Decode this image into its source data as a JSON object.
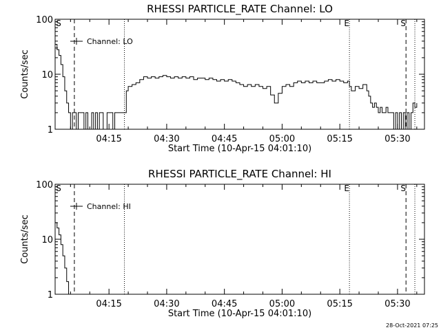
{
  "timestamp": "28-Oct-2021 07:25",
  "chart_data": [
    {
      "type": "line",
      "title": "RHESSI PARTICLE_RATE Channel: LO",
      "xlabel": "Start Time (10-Apr-15 04:01:10)",
      "ylabel": "Counts/sec",
      "legend": "Channel: LO",
      "legend_position": "top-left",
      "y_scale": "log",
      "ylim": [
        1,
        100
      ],
      "y_ticks": [
        "1",
        "10",
        "100"
      ],
      "xlim_min": [
        1,
        97
      ],
      "x_ticks": [
        {
          "min": 15,
          "label": "04:15"
        },
        {
          "min": 30,
          "label": "04:30"
        },
        {
          "min": 45,
          "label": "04:45"
        },
        {
          "min": 60,
          "label": "05:00"
        },
        {
          "min": 75,
          "label": "05:15"
        },
        {
          "min": 90,
          "label": "05:30"
        }
      ],
      "markers": [
        {
          "min": 1.2,
          "label": "S",
          "style": "none"
        },
        {
          "min": 6,
          "label": "",
          "style": "dashed"
        },
        {
          "min": 19,
          "label": "",
          "style": "dotted"
        },
        {
          "min": 77.5,
          "label": "E",
          "style": "dotted"
        },
        {
          "min": 92.2,
          "label": "S",
          "style": "dashed"
        },
        {
          "min": 94.5,
          "label": "",
          "style": "dotted"
        }
      ],
      "series": [
        {
          "x": [
            1,
            1.5,
            2,
            2.5,
            3,
            3.5,
            4,
            4.5,
            5,
            5.5,
            6,
            6.5,
            7,
            7.5,
            8,
            8.5,
            9,
            9.5,
            10,
            10.5,
            11,
            11.5,
            12,
            12.5,
            13,
            13.5,
            14,
            14.5,
            15,
            15.5,
            16,
            16.5,
            17,
            17.5,
            18,
            18.5,
            19,
            19.5,
            20,
            21,
            22,
            23,
            24,
            25,
            26,
            27,
            28,
            29,
            30,
            31,
            32,
            33,
            34,
            35,
            36,
            37,
            38,
            39,
            40,
            41,
            42,
            43,
            44,
            45,
            46,
            47,
            48,
            49,
            50,
            51,
            52,
            53,
            54,
            55,
            56,
            57,
            58,
            59,
            60,
            61,
            62,
            63,
            64,
            65,
            66,
            67,
            68,
            69,
            70,
            71,
            72,
            73,
            74,
            75,
            76,
            77,
            77.5,
            78,
            79,
            80,
            81,
            82,
            82.5,
            83,
            83.5,
            84,
            84.5,
            85,
            85.5,
            86,
            86.5,
            87,
            87.5,
            88,
            88.5,
            89,
            89.5,
            90,
            90.5,
            91,
            91.5,
            92,
            92.5,
            93,
            93.5,
            94,
            94.5,
            95
          ],
          "y": [
            35,
            28,
            22,
            15,
            9,
            5,
            3,
            2,
            1,
            2,
            2,
            1,
            2,
            2,
            2,
            1,
            2,
            1,
            1,
            2,
            1,
            2,
            1,
            2,
            2,
            1,
            1,
            2,
            2,
            2,
            1,
            2,
            2,
            2,
            2,
            2,
            2,
            5,
            6,
            6.5,
            7,
            8,
            9,
            8.5,
            9,
            8.5,
            9,
            9.5,
            9,
            8.5,
            9,
            8.5,
            9,
            8.5,
            9,
            8,
            8.5,
            8.5,
            8,
            8.5,
            8,
            7.5,
            8,
            7.5,
            8,
            7.5,
            7,
            6.5,
            6,
            6.5,
            6,
            6.5,
            6,
            5.5,
            6,
            4.2,
            3,
            4.5,
            6,
            6.5,
            6,
            7,
            7.5,
            7,
            7.5,
            7,
            7.5,
            7,
            7,
            7.5,
            8,
            7.5,
            8,
            7.5,
            7,
            7.5,
            6,
            5,
            6,
            5.5,
            6.5,
            5,
            4,
            3,
            2.5,
            3,
            2.5,
            2,
            2.5,
            2,
            2,
            2.5,
            2,
            2,
            2,
            1,
            2,
            1,
            2,
            1,
            2,
            1,
            2,
            1,
            2,
            3,
            2.5,
            3
          ]
        }
      ]
    },
    {
      "type": "line",
      "title": "RHESSI PARTICLE_RATE Channel: HI",
      "xlabel": "Start Time (10-Apr-15 04:01:10)",
      "ylabel": "Counts/sec",
      "legend": "Channel: HI",
      "legend_position": "top-left",
      "y_scale": "log",
      "ylim": [
        1,
        100
      ],
      "y_ticks": [
        "1",
        "10",
        "100"
      ],
      "xlim_min": [
        1,
        97
      ],
      "x_ticks": [
        {
          "min": 15,
          "label": "04:15"
        },
        {
          "min": 30,
          "label": "04:30"
        },
        {
          "min": 45,
          "label": "04:45"
        },
        {
          "min": 60,
          "label": "05:00"
        },
        {
          "min": 75,
          "label": "05:15"
        },
        {
          "min": 90,
          "label": "05:30"
        }
      ],
      "markers": [
        {
          "min": 1.2,
          "label": "S",
          "style": "none"
        },
        {
          "min": 6,
          "label": "",
          "style": "dashed"
        },
        {
          "min": 19,
          "label": "",
          "style": "dotted"
        },
        {
          "min": 77.5,
          "label": "E",
          "style": "dotted"
        },
        {
          "min": 92.2,
          "label": "S",
          "style": "dashed"
        },
        {
          "min": 94.5,
          "label": "",
          "style": "dotted"
        }
      ],
      "series": [
        {
          "x": [
            1,
            1.5,
            2,
            2.5,
            3,
            3.5,
            4,
            4.5
          ],
          "y": [
            20,
            16,
            12,
            8,
            5,
            3,
            1.7,
            1
          ]
        }
      ]
    }
  ]
}
